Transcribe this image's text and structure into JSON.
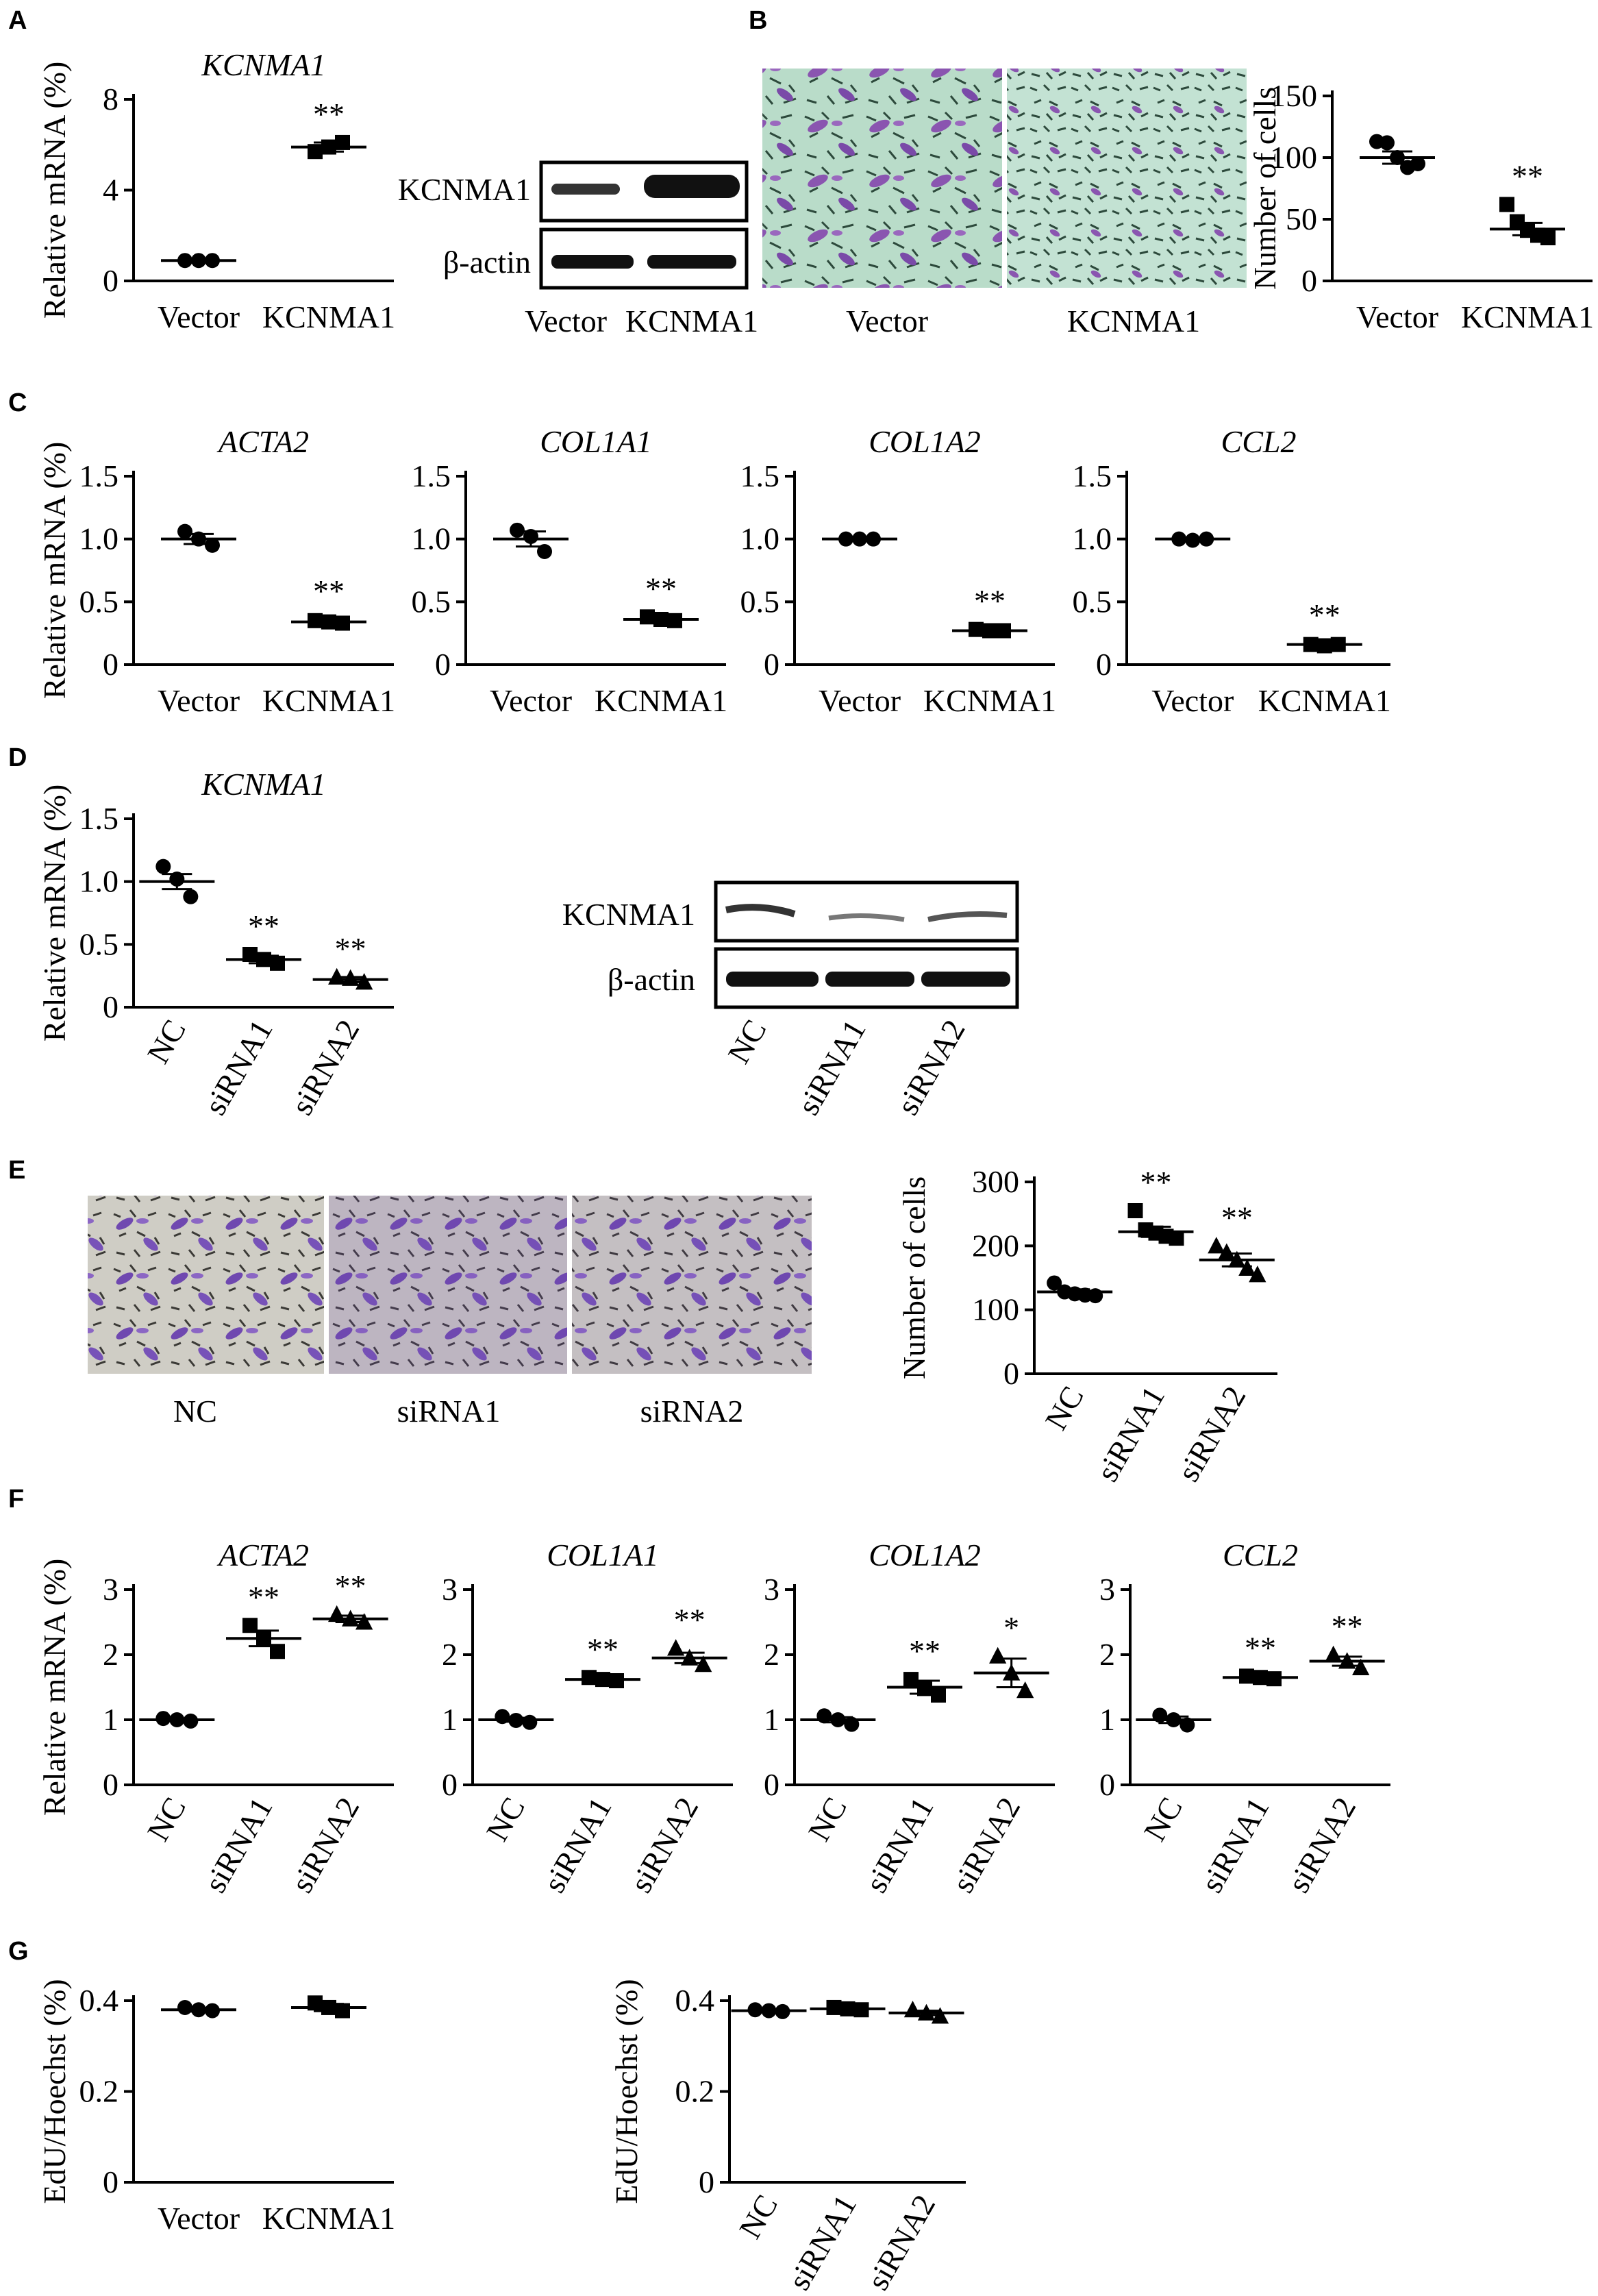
{
  "panels": {
    "A": "A",
    "B": "B",
    "C": "C",
    "D": "D",
    "E": "E",
    "F": "F",
    "G": "G"
  },
  "colors": {
    "ink": "#000000",
    "stain": "#7a4aa8",
    "tissue": "#b9dcc9",
    "tissue2": "#cfcdc5"
  },
  "blots": {
    "a": {
      "labels": [
        "KCNMA1",
        "β-actin"
      ],
      "lanes": [
        "Vector",
        "KCNMA1"
      ]
    },
    "d": {
      "labels": [
        "KCNMA1",
        "β-actin"
      ],
      "lanes": [
        "NC",
        "siRNA1",
        "siRNA2"
      ]
    }
  },
  "micrographs": {
    "b": {
      "labels": [
        "Vector",
        "KCNMA1"
      ]
    },
    "e": {
      "labels": [
        "NC",
        "siRNA1",
        "siRNA2"
      ]
    }
  },
  "chart_data": [
    {
      "id": "A1",
      "type": "scatter",
      "title": "KCNMA1",
      "ylabel": "Relative mRNA (%)",
      "categories": [
        "Vector",
        "KCNMA1"
      ],
      "ylim": [
        0,
        8
      ],
      "yticks": [
        "0",
        "4",
        "8"
      ],
      "markers": [
        "circle",
        "square"
      ],
      "means": [
        0.9,
        5.9
      ],
      "sems": [
        0,
        0.2
      ],
      "points": [
        [
          0.9,
          0.9,
          0.9
        ],
        [
          5.7,
          5.9,
          6.1
        ]
      ],
      "annotations": [
        "",
        "**"
      ]
    },
    {
      "id": "B1",
      "type": "scatter",
      "title": "",
      "ylabel": "Number of cells",
      "categories": [
        "Vector",
        "KCNMA1"
      ],
      "ylim": [
        0,
        150
      ],
      "yticks": [
        "0",
        "50",
        "100",
        "150"
      ],
      "markers": [
        "circle",
        "square"
      ],
      "means": [
        100,
        42
      ],
      "sems": [
        5,
        5
      ],
      "points": [
        [
          113,
          112,
          100,
          92,
          95
        ],
        [
          62,
          48,
          41,
          37,
          35
        ]
      ],
      "annotations": [
        "",
        "**"
      ]
    },
    {
      "id": "C1",
      "type": "scatter",
      "title": "ACTA2",
      "ylabel": "Relative mRNA (%)",
      "categories": [
        "Vector",
        "KCNMA1"
      ],
      "ylim": [
        0,
        1.5
      ],
      "yticks": [
        "0",
        "0.5",
        "1.0",
        "1.5"
      ],
      "markers": [
        "circle",
        "square"
      ],
      "means": [
        1.0,
        0.34
      ],
      "sems": [
        0.04,
        0.02
      ],
      "points": [
        [
          1.06,
          1.0,
          0.95
        ],
        [
          0.35,
          0.34,
          0.33
        ]
      ],
      "annotations": [
        "",
        "**"
      ]
    },
    {
      "id": "C2",
      "type": "scatter",
      "title": "COL1A1",
      "ylabel": "",
      "categories": [
        "Vector",
        "KCNMA1"
      ],
      "ylim": [
        0,
        1.5
      ],
      "yticks": [
        "0",
        "0.5",
        "1.0",
        "1.5"
      ],
      "markers": [
        "circle",
        "square"
      ],
      "means": [
        1.0,
        0.36
      ],
      "sems": [
        0.06,
        0.02
      ],
      "points": [
        [
          1.07,
          1.02,
          0.9
        ],
        [
          0.38,
          0.36,
          0.35
        ]
      ],
      "annotations": [
        "",
        "**"
      ]
    },
    {
      "id": "C3",
      "type": "scatter",
      "title": "COL1A2",
      "ylabel": "",
      "categories": [
        "Vector",
        "KCNMA1"
      ],
      "ylim": [
        0,
        1.5
      ],
      "yticks": [
        "0",
        "0.5",
        "1.0",
        "1.5"
      ],
      "markers": [
        "circle",
        "square"
      ],
      "means": [
        1.0,
        0.27
      ],
      "sems": [
        0,
        0.01
      ],
      "points": [
        [
          1.0,
          1.0,
          1.0
        ],
        [
          0.28,
          0.27,
          0.27
        ]
      ],
      "annotations": [
        "",
        "**"
      ]
    },
    {
      "id": "C4",
      "type": "scatter",
      "title": "CCL2",
      "ylabel": "",
      "categories": [
        "Vector",
        "KCNMA1"
      ],
      "ylim": [
        0,
        1.5
      ],
      "yticks": [
        "0",
        "0.5",
        "1.0",
        "1.5"
      ],
      "markers": [
        "circle",
        "square"
      ],
      "means": [
        1.0,
        0.16
      ],
      "sems": [
        0.01,
        0.01
      ],
      "points": [
        [
          1.0,
          0.99,
          1.0
        ],
        [
          0.16,
          0.15,
          0.16
        ]
      ],
      "annotations": [
        "",
        "**"
      ]
    },
    {
      "id": "D1",
      "type": "scatter",
      "title": "KCNMA1",
      "ylabel": "Relative mRNA (%)",
      "categories": [
        "NC",
        "siRNA1",
        "siRNA2"
      ],
      "ylim": [
        0,
        1.5
      ],
      "yticks": [
        "0",
        "0.5",
        "1.0",
        "1.5"
      ],
      "markers": [
        "circle",
        "square",
        "triangle"
      ],
      "means": [
        1.0,
        0.38,
        0.22
      ],
      "sems": [
        0.06,
        0.03,
        0.02
      ],
      "points": [
        [
          1.12,
          1.02,
          0.88
        ],
        [
          0.42,
          0.38,
          0.35
        ],
        [
          0.24,
          0.23,
          0.2
        ]
      ],
      "annotations": [
        "",
        "**",
        "**"
      ]
    },
    {
      "id": "E1",
      "type": "scatter",
      "title": "",
      "ylabel": "Number of cells",
      "categories": [
        "NC",
        "siRNA1",
        "siRNA2"
      ],
      "ylim": [
        0,
        300
      ],
      "yticks": [
        "0",
        "100",
        "200",
        "300"
      ],
      "markers": [
        "circle",
        "square",
        "triangle"
      ],
      "means": [
        128,
        222,
        178
      ],
      "sems": [
        4,
        8,
        10
      ],
      "points": [
        [
          142,
          128,
          125,
          123,
          122
        ],
        [
          255,
          225,
          220,
          215,
          212
        ],
        [
          200,
          190,
          178,
          165,
          155
        ]
      ],
      "annotations": [
        "",
        "**",
        "**"
      ]
    },
    {
      "id": "F1",
      "type": "scatter",
      "title": "ACTA2",
      "ylabel": "Relative mRNA (%)",
      "categories": [
        "NC",
        "siRNA1",
        "siRNA2"
      ],
      "ylim": [
        0,
        3
      ],
      "yticks": [
        "0",
        "1",
        "2",
        "3"
      ],
      "markers": [
        "circle",
        "square",
        "triangle"
      ],
      "means": [
        1.0,
        2.25,
        2.55
      ],
      "sems": [
        0.02,
        0.12,
        0.05
      ],
      "points": [
        [
          1.02,
          1.0,
          0.98
        ],
        [
          2.45,
          2.25,
          2.05
        ],
        [
          2.62,
          2.55,
          2.5
        ]
      ],
      "annotations": [
        "",
        "**",
        "**"
      ]
    },
    {
      "id": "F2",
      "type": "scatter",
      "title": "COL1A1",
      "ylabel": "",
      "categories": [
        "NC",
        "siRNA1",
        "siRNA2"
      ],
      "ylim": [
        0,
        3
      ],
      "yticks": [
        "0",
        "1",
        "2",
        "3"
      ],
      "markers": [
        "circle",
        "square",
        "triangle"
      ],
      "means": [
        1.0,
        1.62,
        1.95
      ],
      "sems": [
        0.03,
        0.02,
        0.08
      ],
      "points": [
        [
          1.05,
          0.99,
          0.96
        ],
        [
          1.65,
          1.62,
          1.6
        ],
        [
          2.1,
          1.95,
          1.85
        ]
      ],
      "annotations": [
        "",
        "**",
        "**"
      ]
    },
    {
      "id": "F3",
      "type": "scatter",
      "title": "COL1A2",
      "ylabel": "",
      "categories": [
        "NC",
        "siRNA1",
        "siRNA2"
      ],
      "ylim": [
        0,
        3
      ],
      "yticks": [
        "0",
        "1",
        "2",
        "3"
      ],
      "markers": [
        "circle",
        "square",
        "triangle"
      ],
      "means": [
        1.0,
        1.5,
        1.72
      ],
      "sems": [
        0.04,
        0.1,
        0.22
      ],
      "points": [
        [
          1.06,
          1.0,
          0.93
        ],
        [
          1.62,
          1.48,
          1.38
        ],
        [
          1.98,
          1.72,
          1.45
        ]
      ],
      "annotations": [
        "",
        "**",
        "*"
      ]
    },
    {
      "id": "F4",
      "type": "scatter",
      "title": "CCL2",
      "ylabel": "",
      "categories": [
        "NC",
        "siRNA1",
        "siRNA2"
      ],
      "ylim": [
        0,
        3
      ],
      "yticks": [
        "0",
        "1",
        "2",
        "3"
      ],
      "markers": [
        "circle",
        "square",
        "triangle"
      ],
      "means": [
        1.0,
        1.65,
        1.9
      ],
      "sems": [
        0.05,
        0.02,
        0.07
      ],
      "points": [
        [
          1.07,
          1.0,
          0.92
        ],
        [
          1.67,
          1.65,
          1.63
        ],
        [
          2.0,
          1.9,
          1.8
        ]
      ],
      "annotations": [
        "",
        "**",
        "**"
      ]
    },
    {
      "id": "G1",
      "type": "scatter",
      "title": "",
      "ylabel": "EdU/Hoechst (%)",
      "categories": [
        "Vector",
        "KCNMA1"
      ],
      "ylim": [
        0,
        0.4
      ],
      "yticks": [
        "0",
        "0.2",
        "0.4"
      ],
      "markers": [
        "circle",
        "square"
      ],
      "means": [
        0.38,
        0.385
      ],
      "sems": [
        0.004,
        0.008
      ],
      "points": [
        [
          0.385,
          0.38,
          0.378
        ],
        [
          0.395,
          0.385,
          0.378
        ]
      ],
      "annotations": [
        "",
        ""
      ]
    },
    {
      "id": "G2",
      "type": "scatter",
      "title": "",
      "ylabel": "EdU/Hoechst (%)",
      "categories": [
        "NC",
        "siRNA1",
        "siRNA2"
      ],
      "ylim": [
        0,
        0.4
      ],
      "yticks": [
        "0",
        "0.2",
        "0.4"
      ],
      "markers": [
        "circle",
        "square",
        "triangle"
      ],
      "means": [
        0.378,
        0.382,
        0.373
      ],
      "sems": [
        0.002,
        0.003,
        0.005
      ],
      "points": [
        [
          0.38,
          0.378,
          0.376
        ],
        [
          0.385,
          0.382,
          0.38
        ],
        [
          0.38,
          0.373,
          0.366
        ]
      ],
      "annotations": [
        "",
        "",
        ""
      ]
    }
  ]
}
